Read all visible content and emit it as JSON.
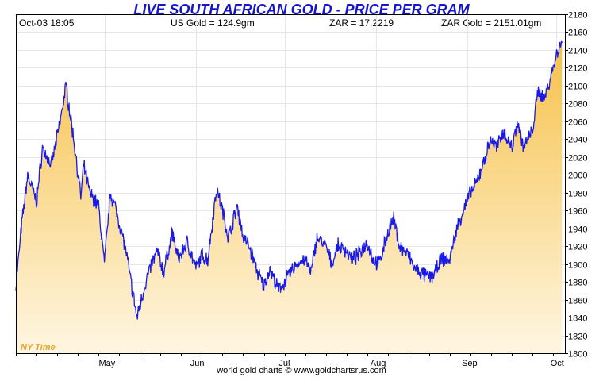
{
  "header": {
    "title": "LIVE SOUTH AFRICAN GOLD - PRICE PER GRAM",
    "timestamp": "Oct-03  18:05",
    "us_gold": "US Gold = 124.9gm",
    "zar_rate": "ZAR = 17.2219",
    "zar_gold": "ZAR Gold = 2151.01gm"
  },
  "footer": {
    "credit": "world gold charts © www.goldchartsrus.com"
  },
  "watermark": "NY Time",
  "colors": {
    "line": "#1a1ae6",
    "fill_top": "#f6c14a",
    "fill_bottom": "#fff6e2",
    "title": "#1515cc",
    "watermark": "#e8a52a"
  },
  "chart_data": {
    "type": "area",
    "title": "LIVE SOUTH AFRICAN GOLD - PRICE PER GRAM",
    "xlabel": "",
    "ylabel": "",
    "x_tick_labels": [
      "May",
      "Jun",
      "Jul",
      "Aug",
      "Sep",
      "Oct"
    ],
    "y_ticks": [
      1800,
      1820,
      1840,
      1860,
      1880,
      1900,
      1920,
      1940,
      1960,
      1980,
      2000,
      2020,
      2040,
      2060,
      2080,
      2100,
      2120,
      2140,
      2160,
      2180
    ],
    "ylim": [
      1800,
      2180
    ],
    "y_axis_side": "right",
    "grid": true,
    "series": [
      {
        "x": [
          "04-01",
          "04-03",
          "04-05",
          "04-08",
          "04-10",
          "04-13",
          "04-16",
          "04-18",
          "04-21",
          "04-23",
          "04-24",
          "04-26",
          "04-29",
          "05-01",
          "05-03",
          "05-05",
          "05-08",
          "05-10",
          "05-12",
          "05-15",
          "05-17",
          "05-19",
          "05-21",
          "05-24",
          "05-26",
          "05-29",
          "06-01",
          "06-03",
          "06-05",
          "06-08",
          "06-10",
          "06-12",
          "06-15",
          "06-17",
          "06-19",
          "06-22",
          "06-24",
          "06-26",
          "06-29",
          "07-01",
          "07-03",
          "07-05",
          "07-08",
          "07-10",
          "07-12",
          "07-15",
          "07-17",
          "07-19",
          "07-22",
          "07-24",
          "07-26",
          "07-29",
          "07-31",
          "08-02",
          "08-05",
          "08-07",
          "08-09",
          "08-12",
          "08-14",
          "08-16",
          "08-19",
          "08-21",
          "08-23",
          "08-26",
          "08-28",
          "08-30",
          "09-02",
          "09-04",
          "09-06",
          "09-09",
          "09-11",
          "09-13",
          "09-16",
          "09-18",
          "09-20",
          "09-23",
          "09-25",
          "09-27",
          "09-30",
          "10-02",
          "10-03"
        ],
        "values": [
          1875,
          1945,
          2000,
          1970,
          2030,
          2010,
          2060,
          2100,
          2030,
          1975,
          2010,
          1980,
          1965,
          1900,
          1980,
          1960,
          1920,
          1880,
          1840,
          1880,
          1900,
          1915,
          1890,
          1935,
          1905,
          1925,
          1895,
          1910,
          1905,
          1985,
          1960,
          1930,
          1965,
          1930,
          1920,
          1890,
          1875,
          1895,
          1870,
          1880,
          1890,
          1900,
          1905,
          1890,
          1930,
          1920,
          1900,
          1920,
          1915,
          1905,
          1910,
          1925,
          1905,
          1900,
          1935,
          1950,
          1920,
          1910,
          1895,
          1890,
          1885,
          1890,
          1905,
          1905,
          1935,
          1955,
          1980,
          1990,
          2010,
          2040,
          2030,
          2050,
          2030,
          2060,
          2030,
          2050,
          2095,
          2085,
          2120,
          2145,
          2148
        ]
      }
    ]
  }
}
